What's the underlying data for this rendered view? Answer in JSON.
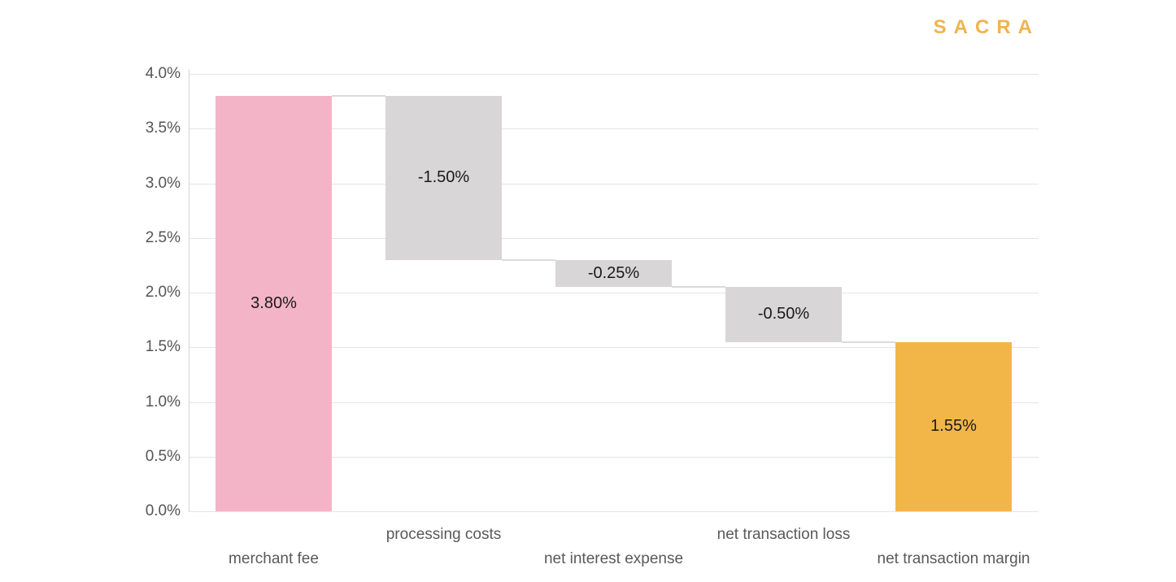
{
  "brand": {
    "logo_text": "SACRA",
    "logo_color": "#F0B44E"
  },
  "chart_data": {
    "type": "bar",
    "subtype": "waterfall",
    "title": "",
    "xlabel": "",
    "ylabel": "",
    "categories": [
      "merchant fee",
      "processing costs",
      "net interest expense",
      "net transaction loss",
      "net transaction margin"
    ],
    "bars": [
      {
        "category": "merchant fee",
        "start": 0.0,
        "end": 3.8,
        "value": 3.8,
        "value_label": "3.80%",
        "color_key": "pink"
      },
      {
        "category": "processing costs",
        "start": 3.8,
        "end": 2.3,
        "value": -1.5,
        "value_label": "-1.50%",
        "color_key": "gray"
      },
      {
        "category": "net interest expense",
        "start": 2.3,
        "end": 2.05,
        "value": -0.25,
        "value_label": "-0.25%",
        "color_key": "gray"
      },
      {
        "category": "net transaction loss",
        "start": 2.05,
        "end": 1.55,
        "value": -0.5,
        "value_label": "-0.50%",
        "color_key": "gray"
      },
      {
        "category": "net transaction margin",
        "start": 0.0,
        "end": 1.55,
        "value": 1.55,
        "value_label": "1.55%",
        "color_key": "orange"
      }
    ],
    "y_axis": {
      "min": 0.0,
      "max": 4.0,
      "step": 0.5,
      "tick_labels": [
        "0.0%",
        "0.5%",
        "1.0%",
        "1.5%",
        "2.0%",
        "2.5%",
        "3.0%",
        "3.5%",
        "4.0%"
      ]
    },
    "grid": "horizontal",
    "legend": "none",
    "colors": {
      "pink": "#F3B4C7",
      "gray": "#D8D6D6",
      "orange": "#F2B648"
    }
  }
}
